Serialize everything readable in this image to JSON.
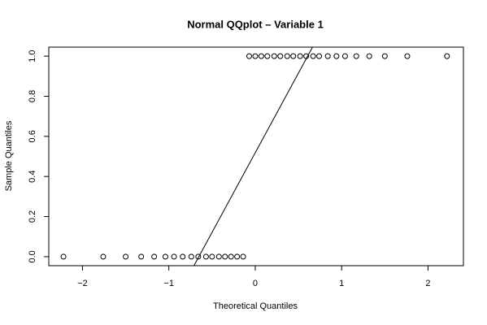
{
  "chart_data": {
    "type": "scatter",
    "title": "Normal QQplot – Variable 1",
    "x_label": "Theoretical Quantiles",
    "y_label": "Sample Quantiles",
    "x": [
      -2.22,
      -1.76,
      -1.5,
      -1.32,
      -1.17,
      -1.04,
      -0.94,
      -0.84,
      -0.74,
      -0.66,
      -0.57,
      -0.5,
      -0.42,
      -0.35,
      -0.28,
      -0.21,
      -0.14,
      -0.07,
      0,
      0.07,
      0.14,
      0.22,
      0.29,
      0.37,
      0.44,
      0.52,
      0.59,
      0.67,
      0.74,
      0.84,
      0.94,
      1.04,
      1.17,
      1.32,
      1.5,
      1.76,
      2.22
    ],
    "y": [
      0,
      0,
      0,
      0,
      0,
      0,
      0,
      0,
      0,
      0,
      0,
      0,
      0,
      0,
      0,
      0,
      0,
      1,
      1,
      1,
      1,
      1,
      1,
      1,
      1,
      1,
      1,
      1,
      1,
      1,
      1,
      1,
      1,
      1,
      1,
      1,
      1
    ],
    "color": "#000000",
    "reference_line": {
      "x": [
        -0.66,
        0.665
      ],
      "y": [
        0,
        1
      ]
    },
    "xlim": [
      -2.39,
      2.41
    ],
    "ylim": [
      -0.045,
      1.045
    ],
    "xticks": [
      {
        "value": -2,
        "label": "−2"
      },
      {
        "value": -1,
        "label": "−1"
      },
      0,
      1,
      2
    ],
    "yticks": [
      {
        "value": 0,
        "label": "0.0"
      },
      {
        "value": 0.2,
        "label": "0.2"
      },
      {
        "value": 0.4,
        "label": "0.4"
      },
      {
        "value": 0.6,
        "label": "0.6"
      },
      {
        "value": 0.8,
        "label": "0.8"
      },
      {
        "value": 1,
        "label": "1.0"
      }
    ]
  }
}
